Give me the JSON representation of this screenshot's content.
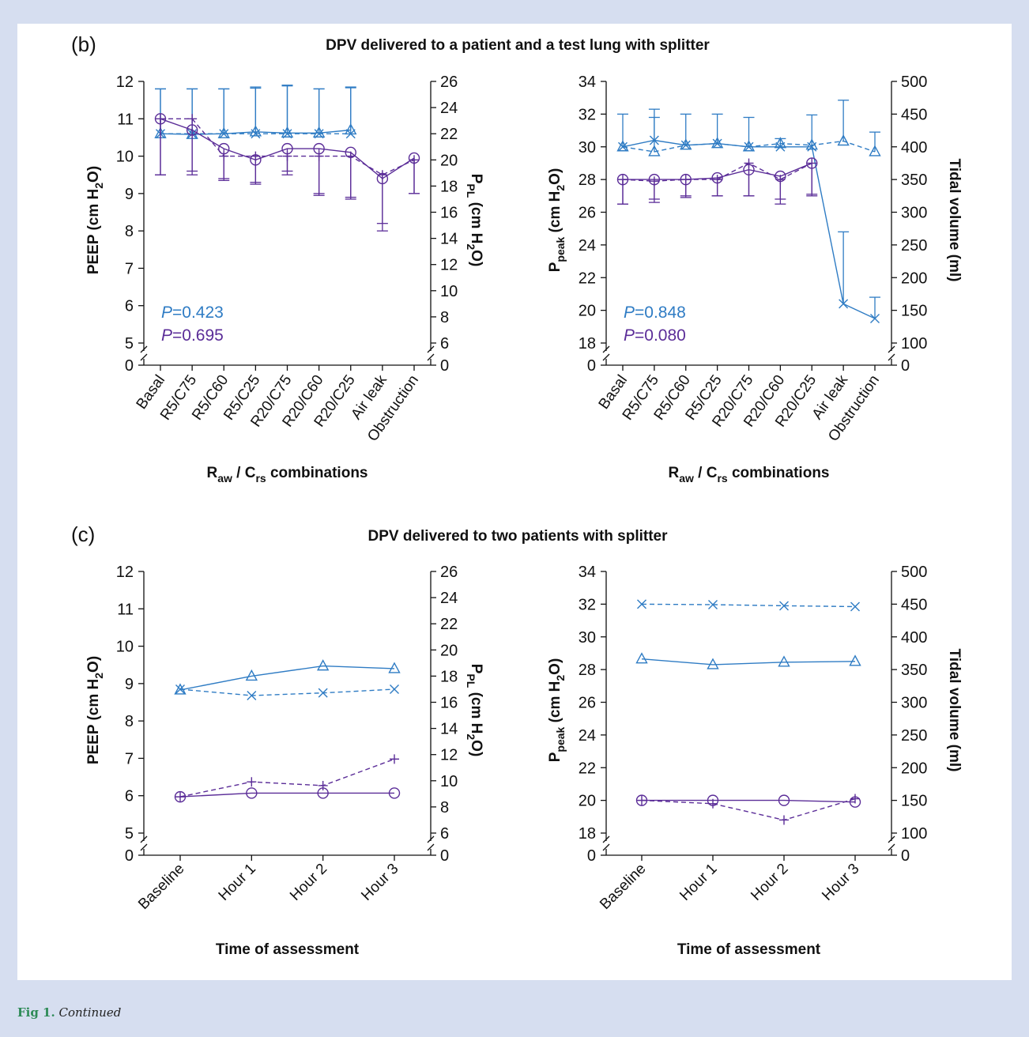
{
  "caption": {
    "label": "Fig 1.",
    "text": "Continued"
  },
  "colors": {
    "blue": "#2f7cc4",
    "purple": "#5b2d98",
    "background": "#d6def0",
    "panel": "#ffffff"
  },
  "sections": {
    "b": {
      "letter": "(b)",
      "title": "DPV delivered to a patient and a test lung with splitter"
    },
    "c": {
      "letter": "(c)",
      "title": "DPV delivered to two patients with splitter"
    }
  },
  "chart_data": [
    {
      "id": "b-left",
      "type": "line",
      "categories": [
        "Basal",
        "R5/C75",
        "R5/C60",
        "R5/C25",
        "R20/C75",
        "R20/C60",
        "R20/C25",
        "Air leak",
        "Obstruction"
      ],
      "xlabel": "Raw / Crs combinations",
      "ylabel_left": "PEEP (cm H2O)",
      "ylabel_right": "PPL (cm H2O)",
      "left_ticks": [
        "0",
        "5",
        "6",
        "7",
        "8",
        "9",
        "10",
        "11",
        "12"
      ],
      "right_ticks": [
        "0",
        "6",
        "8",
        "10",
        "12",
        "14",
        "16",
        "18",
        "20",
        "22",
        "24",
        "26"
      ],
      "ylim_left": [
        5,
        12
      ],
      "ylim_right": [
        6,
        26
      ],
      "axis_break": true,
      "pvalues": [
        {
          "prefix": "P",
          "text": "=0.423",
          "color": "blue"
        },
        {
          "prefix": "P",
          "text": "=0.695",
          "color": "purple"
        }
      ],
      "series": [
        {
          "color": "blue",
          "dash": false,
          "marker": "triangle",
          "values": [
            10.6,
            10.58,
            10.6,
            10.65,
            10.62,
            10.62,
            10.7,
            null,
            null
          ],
          "err_up": [
            11.8,
            11.8,
            11.8,
            11.82,
            11.88,
            11.8,
            11.83,
            null,
            null
          ],
          "err_down": [
            null,
            null,
            null,
            null,
            null,
            null,
            null,
            null,
            null
          ]
        },
        {
          "color": "blue",
          "dash": true,
          "marker": "x",
          "values": [
            10.6,
            10.6,
            10.6,
            10.6,
            10.6,
            10.6,
            10.6,
            null,
            null
          ],
          "err_up": [
            11.8,
            11.8,
            11.8,
            11.85,
            11.9,
            11.8,
            11.85,
            null,
            null
          ],
          "err_down": [
            null,
            null,
            null,
            null,
            null,
            null,
            null,
            null,
            null
          ]
        },
        {
          "color": "purple",
          "dash": false,
          "marker": "circle",
          "values": [
            11.0,
            10.7,
            10.2,
            9.9,
            10.2,
            10.2,
            10.1,
            9.4,
            9.95
          ],
          "err_up": [
            null,
            null,
            null,
            null,
            null,
            null,
            null,
            null,
            null
          ],
          "err_down": [
            9.5,
            9.6,
            9.4,
            9.25,
            9.5,
            8.95,
            8.85,
            8.0,
            9.0
          ]
        },
        {
          "color": "purple",
          "dash": true,
          "marker": "plus",
          "values": [
            11.0,
            11.0,
            10.0,
            10.0,
            10.0,
            10.0,
            10.0,
            9.5,
            9.9
          ],
          "err_up": [
            null,
            null,
            null,
            null,
            null,
            null,
            null,
            null,
            null
          ],
          "err_down": [
            9.5,
            9.5,
            9.35,
            9.3,
            9.6,
            9.0,
            8.9,
            8.2,
            9.0
          ]
        }
      ]
    },
    {
      "id": "b-right",
      "type": "line",
      "categories": [
        "Basal",
        "R5/C75",
        "R5/C60",
        "R5/C25",
        "R20/C75",
        "R20/C60",
        "R20/C25",
        "Air leak",
        "Obstruction"
      ],
      "xlabel": "Raw / Crs combinations",
      "ylabel_left": "Ppeak (cm H2O)",
      "ylabel_right": "Tidal volume (ml)",
      "left_ticks": [
        "0",
        "18",
        "20",
        "22",
        "24",
        "26",
        "28",
        "30",
        "32",
        "34"
      ],
      "right_ticks": [
        "0",
        "100",
        "150",
        "200",
        "250",
        "300",
        "350",
        "400",
        "450",
        "500"
      ],
      "ylim_left": [
        18,
        34
      ],
      "ylim_right": [
        100,
        500
      ],
      "axis_break": true,
      "pvalues": [
        {
          "prefix": "P",
          "text": "=0.848",
          "color": "blue"
        },
        {
          "prefix": "P",
          "text": "=0.080",
          "color": "purple"
        }
      ],
      "series": [
        {
          "color": "blue",
          "dash": false,
          "marker": "x",
          "values": [
            30.0,
            30.4,
            30.1,
            30.2,
            30.0,
            30.0,
            30.0,
            20.4,
            19.5
          ],
          "err_up": [
            32.0,
            32.3,
            32.0,
            32.0,
            31.8,
            30.5,
            31.95,
            24.8,
            20.8
          ],
          "err_down": [
            null,
            null,
            null,
            null,
            null,
            null,
            null,
            null,
            null
          ]
        },
        {
          "color": "blue",
          "dash": true,
          "marker": "triangle",
          "values": [
            30.0,
            29.7,
            30.1,
            30.2,
            30.0,
            30.2,
            30.1,
            30.35,
            29.7
          ],
          "err_up": [
            null,
            31.8,
            null,
            null,
            null,
            null,
            null,
            32.85,
            30.9
          ],
          "err_down": [
            null,
            null,
            null,
            null,
            null,
            null,
            null,
            null,
            null
          ]
        },
        {
          "color": "purple",
          "dash": false,
          "marker": "circle",
          "values": [
            28.0,
            28.0,
            28.0,
            28.1,
            28.6,
            28.2,
            29.0,
            null,
            null
          ],
          "err_up": [
            null,
            null,
            null,
            null,
            null,
            null,
            null,
            null,
            null
          ],
          "err_down": [
            26.5,
            26.8,
            26.9,
            27.0,
            27.0,
            26.5,
            27.0,
            null,
            null
          ]
        },
        {
          "color": "purple",
          "dash": true,
          "marker": "plus",
          "values": [
            28.0,
            27.9,
            28.0,
            28.0,
            29.0,
            28.0,
            29.0,
            null,
            null
          ],
          "err_up": [
            null,
            null,
            null,
            null,
            null,
            null,
            null,
            null,
            null
          ],
          "err_down": [
            26.5,
            26.6,
            27.0,
            27.0,
            27.0,
            26.8,
            27.1,
            null,
            null
          ]
        }
      ]
    },
    {
      "id": "c-left",
      "type": "line",
      "categories": [
        "Baseline",
        "Hour 1",
        "Hour 2",
        "Hour 3"
      ],
      "xlabel": "Time of assessment",
      "ylabel_left": "PEEP (cm H2O)",
      "ylabel_right": "PPL (cm H2O)",
      "left_ticks": [
        "0",
        "5",
        "6",
        "7",
        "8",
        "9",
        "10",
        "11",
        "12"
      ],
      "right_ticks": [
        "0",
        "6",
        "8",
        "10",
        "12",
        "14",
        "16",
        "18",
        "20",
        "22",
        "24",
        "26"
      ],
      "ylim_left": [
        5,
        12
      ],
      "ylim_right": [
        6,
        26
      ],
      "axis_break": true,
      "pvalues": [],
      "series": [
        {
          "color": "blue",
          "dash": false,
          "marker": "triangle",
          "values": [
            8.83,
            9.2,
            9.47,
            9.4
          ]
        },
        {
          "color": "blue",
          "dash": true,
          "marker": "x",
          "values": [
            8.85,
            8.68,
            8.75,
            8.85
          ]
        },
        {
          "color": "purple",
          "dash": false,
          "marker": "circle",
          "values": [
            5.97,
            6.07,
            6.07,
            6.07
          ]
        },
        {
          "color": "purple",
          "dash": true,
          "marker": "plus",
          "values": [
            5.97,
            6.37,
            6.27,
            6.98
          ]
        }
      ]
    },
    {
      "id": "c-right",
      "type": "line",
      "categories": [
        "Baseline",
        "Hour 1",
        "Hour 2",
        "Hour 3"
      ],
      "xlabel": "Time of assessment",
      "ylabel_left": "Ppeak (cm H2O)",
      "ylabel_right": "Tidal volume (ml)",
      "left_ticks": [
        "0",
        "18",
        "20",
        "22",
        "24",
        "26",
        "28",
        "30",
        "32",
        "34"
      ],
      "right_ticks": [
        "0",
        "100",
        "150",
        "200",
        "250",
        "300",
        "350",
        "400",
        "450",
        "500"
      ],
      "ylim_left": [
        18,
        34
      ],
      "ylim_right": [
        100,
        500
      ],
      "axis_break": true,
      "pvalues": [],
      "series": [
        {
          "color": "blue",
          "dash": true,
          "marker": "x",
          "values": [
            32.0,
            31.97,
            31.9,
            31.85
          ]
        },
        {
          "color": "blue",
          "dash": false,
          "marker": "triangle",
          "values": [
            28.65,
            28.3,
            28.45,
            28.5
          ]
        },
        {
          "color": "purple",
          "dash": false,
          "marker": "circle",
          "values": [
            20.0,
            20.0,
            20.0,
            19.9
          ]
        },
        {
          "color": "purple",
          "dash": true,
          "marker": "plus",
          "values": [
            20.0,
            19.8,
            18.8,
            20.1
          ]
        }
      ]
    }
  ]
}
